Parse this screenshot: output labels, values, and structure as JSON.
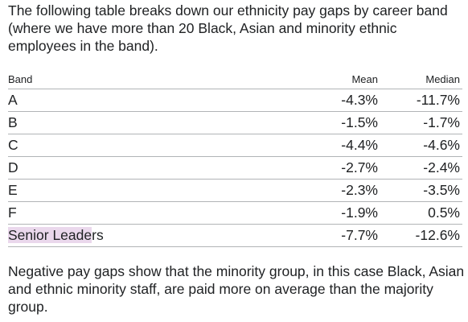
{
  "intro": {
    "text": "The following table breaks down our ethnicity pay gaps by career band (where we have more than 20 Black, Asian and minority ethnic employees in the band)."
  },
  "table": {
    "headers": {
      "band": "Band",
      "mean": "Mean",
      "median": "Median"
    },
    "rows": [
      {
        "band": "A",
        "mean": "-4.3%",
        "median": "-11.7%"
      },
      {
        "band": "B",
        "mean": "-1.5%",
        "median": "-1.7%"
      },
      {
        "band": "C",
        "mean": "-4.4%",
        "median": "-4.6%"
      },
      {
        "band": "D",
        "mean": "-2.7%",
        "median": "-2.4%"
      },
      {
        "band": "E",
        "mean": "-2.3%",
        "median": "-3.5%"
      },
      {
        "band": "F",
        "mean": "-1.9%",
        "median": "0.5%"
      },
      {
        "band_highlighted": "Senior Leade",
        "band_rest": "rs",
        "mean": "-7.7%",
        "median": "-12.6%"
      }
    ],
    "highlight_color": "#ead8ec",
    "rule_color": "#b1b4b6"
  },
  "note": {
    "text": "Negative pay gaps show that the minority group, in this case Black, Asian and ethnic minority staff, are paid more on average than the majority group."
  }
}
